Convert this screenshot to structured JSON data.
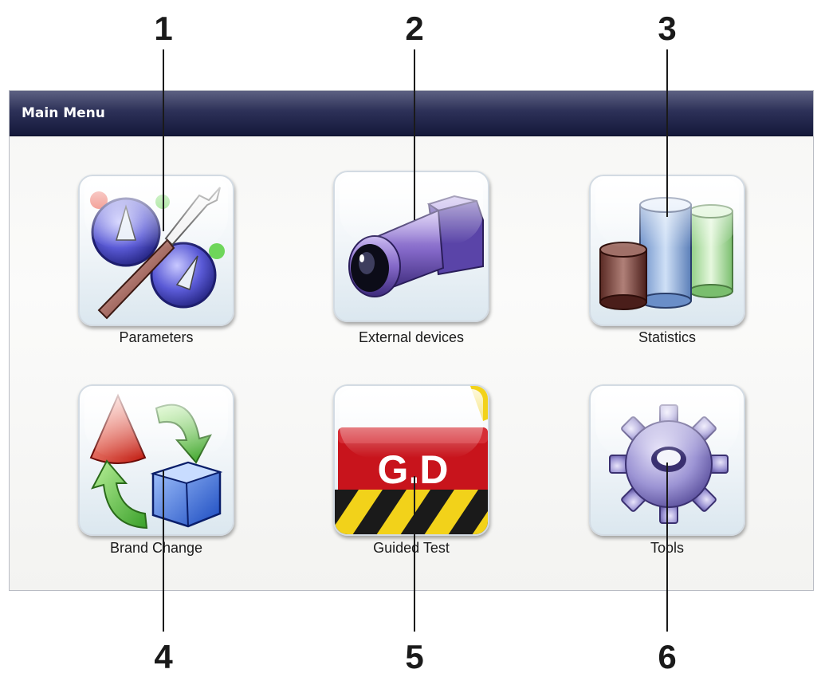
{
  "window": {
    "title": "Main Menu"
  },
  "callouts": [
    "1",
    "2",
    "3",
    "4",
    "5",
    "6"
  ],
  "menu": {
    "parameters_label": "Parameters",
    "external_devices_label": "External devices",
    "statistics_label": "Statistics",
    "brand_change_label": "Brand Change",
    "guided_test_label": "Guided Test",
    "tools_label": "Tools"
  },
  "guided_test_badge": "G.D",
  "icons": {
    "parameters": "wrench-dials-icon",
    "external_devices": "camera-icon",
    "statistics": "cylinder-bar-chart-icon",
    "brand_change": "shapes-cycle-icon",
    "guided_test": "gd-warning-icon",
    "tools": "gear-icon"
  },
  "colors": {
    "titlebar": "#2d3158",
    "badge_red": "#c8141c",
    "hazard_yellow": "#f2d21a"
  }
}
